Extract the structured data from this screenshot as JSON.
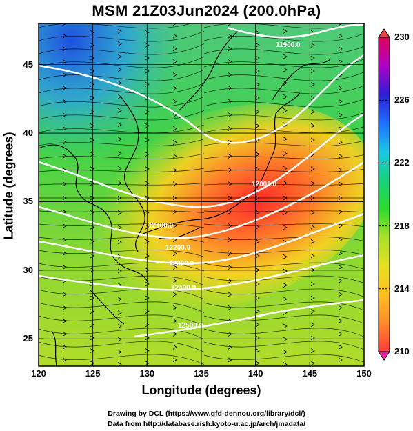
{
  "title": "MSM 21Z03Jun2024 (200.0hPa)",
  "xlabel": "Longitude (degrees)",
  "ylabel": "Latitude  (degrees)",
  "x_ticks": [
    "120",
    "125",
    "130",
    "135",
    "140",
    "145",
    "150"
  ],
  "y_ticks": [
    "25",
    "30",
    "35",
    "40",
    "45"
  ],
  "colorbar": {
    "ticks": [
      "230",
      "226",
      "222",
      "218",
      "214",
      "210"
    ],
    "min": 210,
    "max": 230,
    "colors": [
      "#e2005a",
      "#b000c8",
      "#2e1ed6",
      "#1e70ff",
      "#18c8e6",
      "#16d27a",
      "#2cdc2c",
      "#a8e12a",
      "#e6e11e",
      "#ffc020",
      "#ff8a2a",
      "#ff3a3a"
    ]
  },
  "contours": [
    {
      "label": "11900.0"
    },
    {
      "label": "12000.0"
    },
    {
      "label": "12100.0"
    },
    {
      "label": "12200.0"
    },
    {
      "label": "12300.0"
    },
    {
      "label": "12400.0"
    },
    {
      "label": "12500.0"
    }
  ],
  "credits": [
    "Drawing by DCL (https://www.gfd-dennou.org/library/dcl/)",
    "Data from http://database.rish.kyoto-u.ac.jp/arch/jmadata/"
  ],
  "map_extent": {
    "lon": [
      120,
      150
    ],
    "lat": [
      23,
      48
    ]
  }
}
